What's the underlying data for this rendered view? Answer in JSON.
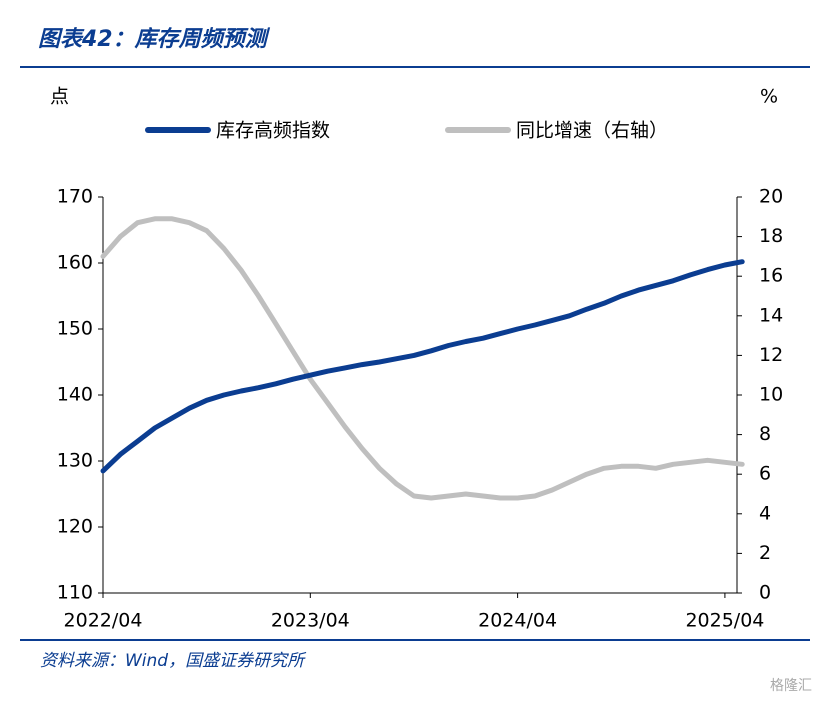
{
  "header": {
    "title": "图表42：库存周频预测"
  },
  "chart_data": {
    "type": "line",
    "ylabel": "点",
    "y2label": "%",
    "categories": [
      "2022/04",
      null,
      null,
      null,
      null,
      null,
      null,
      null,
      null,
      null,
      null,
      null,
      "2023/04",
      null,
      null,
      null,
      null,
      null,
      null,
      null,
      null,
      null,
      null,
      null,
      "2024/04",
      null,
      null,
      null,
      null,
      null,
      null,
      null,
      null,
      null,
      null,
      null,
      "2025/04",
      null
    ],
    "series": [
      {
        "name": "库存高频指数",
        "color": "#0b3d91",
        "axis": "y",
        "values": [
          128.5,
          131,
          133,
          135,
          136.5,
          138,
          139.2,
          140,
          140.6,
          141.1,
          141.7,
          142.4,
          143.0,
          143.6,
          144.1,
          144.6,
          145.0,
          145.5,
          146.0,
          146.7,
          147.5,
          148.1,
          148.6,
          149.3,
          150.0,
          150.6,
          151.3,
          152.0,
          153.0,
          153.9,
          155.0,
          155.9,
          156.6,
          157.3,
          158.2,
          159.0,
          159.7,
          160.2
        ]
      },
      {
        "name": "同比增速（右轴）",
        "color": "#bfbfbf",
        "axis": "y2",
        "values": [
          17.0,
          18.0,
          18.7,
          18.9,
          18.9,
          18.7,
          18.3,
          17.4,
          16.3,
          15.0,
          13.6,
          12.2,
          10.8,
          9.6,
          8.4,
          7.3,
          6.3,
          5.5,
          4.9,
          4.8,
          4.9,
          5.0,
          4.9,
          4.8,
          4.8,
          4.9,
          5.2,
          5.6,
          6.0,
          6.3,
          6.4,
          6.4,
          6.3,
          6.5,
          6.6,
          6.7,
          6.6,
          6.5
        ]
      }
    ],
    "ylim": [
      110,
      170
    ],
    "yticks": [
      110,
      120,
      130,
      140,
      150,
      160,
      170
    ],
    "y2lim": [
      0,
      20
    ],
    "y2ticks": [
      0,
      2,
      4,
      6,
      8,
      10,
      12,
      14,
      16,
      18,
      20
    ],
    "legend": "top"
  },
  "footer": {
    "source": "资料来源：Wind，国盛证券研究所",
    "watermark": "格隆汇"
  }
}
